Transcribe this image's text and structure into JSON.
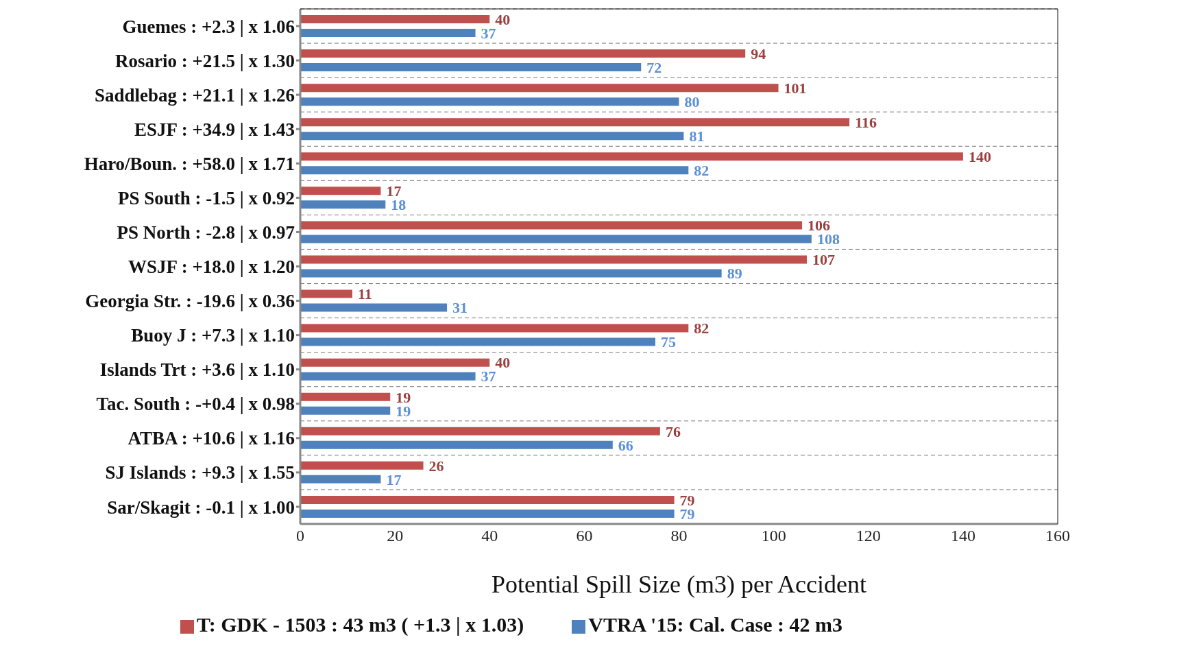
{
  "chart_data": {
    "type": "bar",
    "orientation": "horizontal",
    "xlabel": "Potential Spill Size (m3) per Accident",
    "categories": [
      "Guemes : +2.3 |  x 1.06",
      "Rosario : +21.5 |  x 1.30",
      "Saddlebag : +21.1 |  x 1.26",
      "ESJF : +34.9 |  x 1.43",
      "Haro/Boun. : +58.0 |  x 1.71",
      "PS South : -1.5 |  x 0.92",
      "PS North : -2.8 |  x 0.97",
      "WSJF : +18.0 |  x 1.20",
      "Georgia Str. : -19.6 |  x 0.36",
      "Buoy J : +7.3 |  x 1.10",
      "Islands Trt : +3.6 |  x 1.10",
      "Tac. South : -+0.4 |  x 0.98",
      "ATBA : +10.6 |  x 1.16",
      "SJ Islands : +9.3 |  x 1.55",
      "Sar/Skagit : -0.1 |  x 1.00"
    ],
    "series": [
      {
        "name": "T: GDK - 1503 : 43 m3 ( +1.3 |  x 1.03)",
        "color": "#c0504d",
        "values": [
          40,
          94,
          101,
          116,
          140,
          17,
          106,
          107,
          11,
          82,
          40,
          19,
          76,
          26,
          79
        ]
      },
      {
        "name": "VTRA '15: Cal. Case : 42 m3",
        "color": "#4f81bd",
        "values": [
          37,
          72,
          80,
          81,
          82,
          18,
          108,
          89,
          31,
          75,
          37,
          19,
          66,
          17,
          79
        ]
      }
    ],
    "xlim": [
      0,
      160
    ],
    "xticks": [
      0,
      20,
      40,
      60,
      80,
      100,
      120,
      140,
      160
    ],
    "grid": "y",
    "legend": "bottom",
    "data_labels": true
  }
}
